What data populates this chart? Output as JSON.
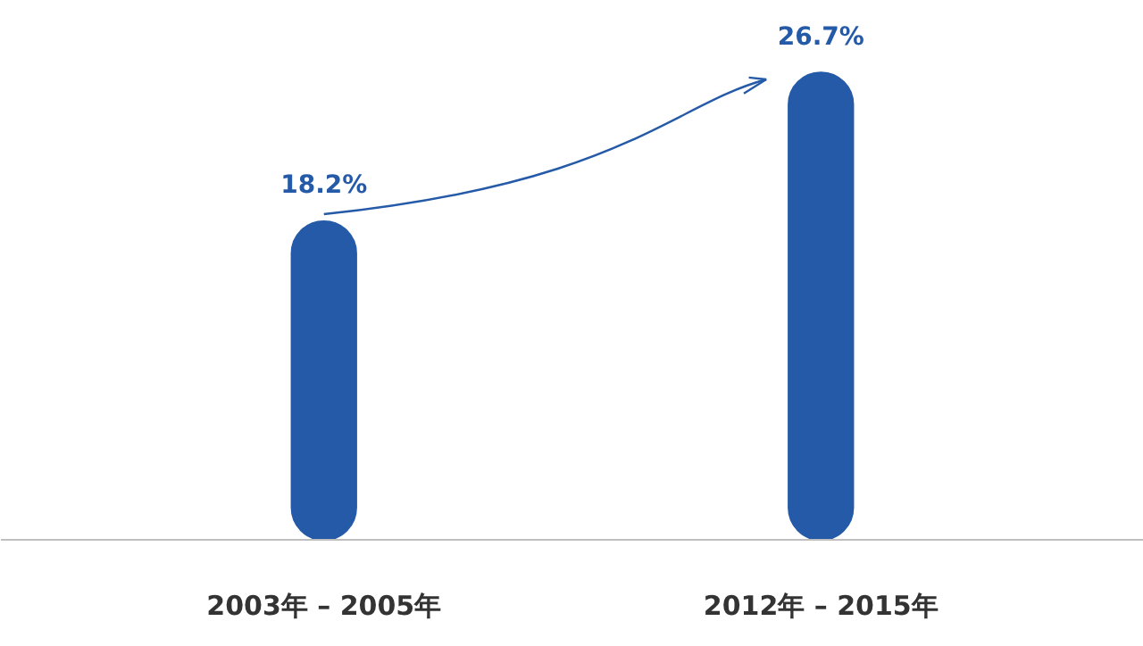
{
  "chart_data": {
    "type": "bar",
    "categories": [
      "2003年 – 2005年",
      "2012年 – 2015年"
    ],
    "values": [
      18.2,
      26.7
    ],
    "color": "#255aa8",
    "tick_labels": "x",
    "data_labels": true,
    "value_labels": [
      "18.2%",
      "26.7%"
    ],
    "grid": false
  }
}
